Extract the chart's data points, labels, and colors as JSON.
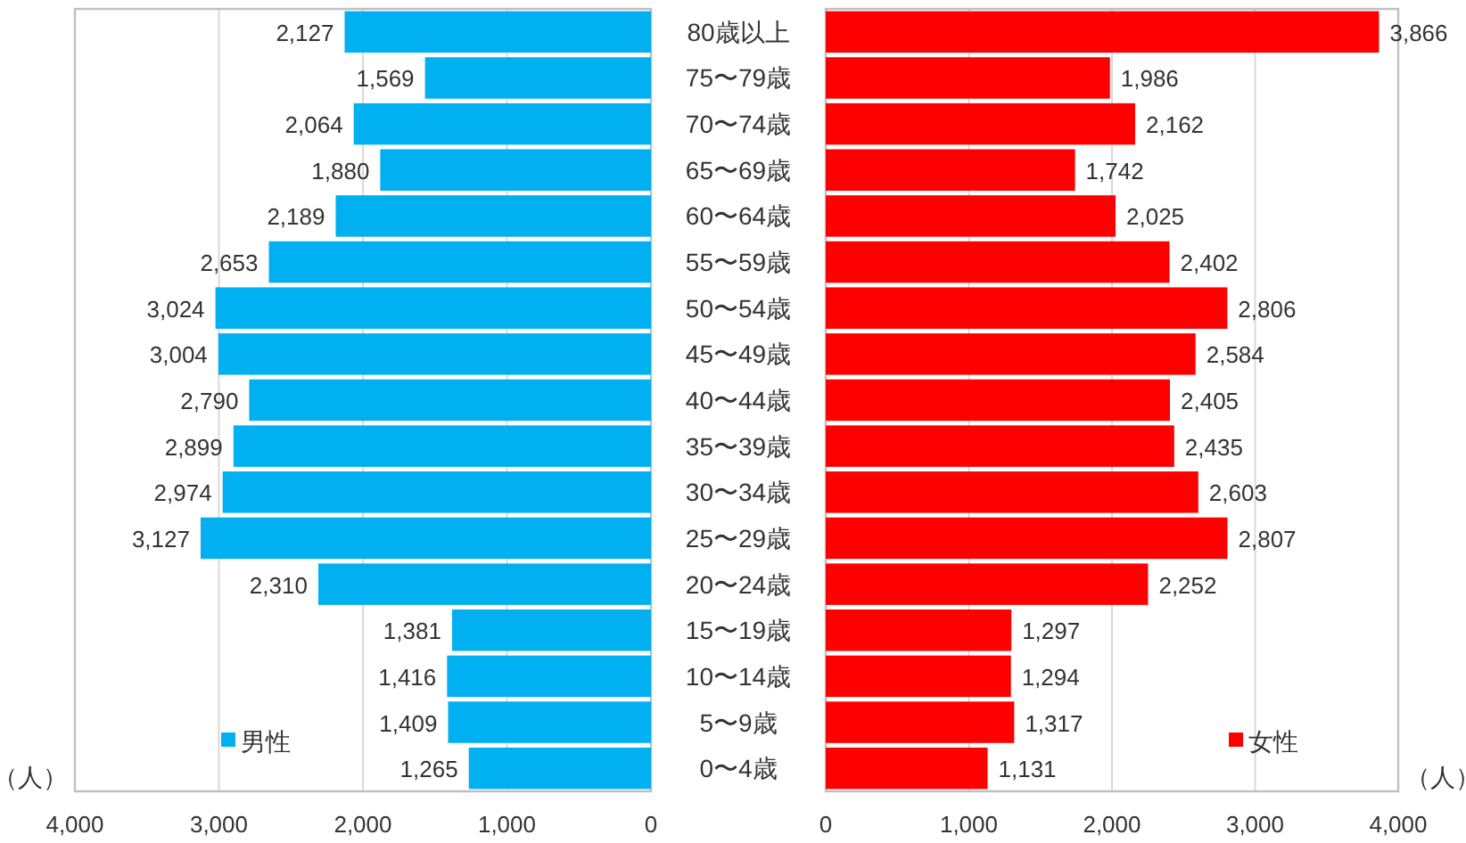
{
  "chart_data": [
    {
      "type": "bar",
      "orientation": "horizontal",
      "categories": [
        null,
        null,
        null,
        null,
        null,
        null,
        null,
        null,
        null,
        null,
        null,
        null,
        null,
        null,
        null,
        null,
        null
      ],
      "series": [
        {
          "name": "男性",
          "color": "#00b0f0",
          "values": [
            2127,
            1569,
            2064,
            1880,
            2189,
            2653,
            3024,
            3004,
            2790,
            2899,
            2974,
            3127,
            2310,
            1381,
            1416,
            1409,
            1265
          ],
          "value_labels": [
            "2,127",
            "1,569",
            "2,064",
            "1,880",
            "2,189",
            "2,653",
            "3,024",
            "3,004",
            "2,790",
            "2,899",
            "2,974",
            "3,127",
            "2,310",
            "1,381",
            "1,416",
            "1,409",
            "1,265"
          ]
        }
      ],
      "xlim": [
        4000,
        0
      ],
      "xticks": [
        {
          "value": 4000,
          "label": "4,000"
        },
        {
          "value": 3000,
          "label": "3,000"
        },
        {
          "value": 2000,
          "label": "2,000"
        },
        {
          "value": 1000,
          "label": "1,000"
        },
        0
      ],
      "xlabel": "（人）",
      "grid": "x",
      "legend": "bottom left",
      "tick_labels": "x"
    },
    {
      "type": "bar",
      "orientation": "horizontal",
      "categories": [
        "80歳以上",
        "75〜79歳",
        "70〜74歳",
        "65〜69歳",
        "60〜64歳",
        "55〜59歳",
        "50〜54歳",
        "45〜49歳",
        "40〜44歳",
        "35〜39歳",
        "30〜34歳",
        "25〜29歳",
        "20〜24歳",
        "15〜19歳",
        "10〜14歳",
        "5〜9歳",
        "0〜4歳"
      ],
      "series": [
        {
          "name": "女性",
          "color": "#ff0000",
          "values": [
            3866,
            1986,
            2162,
            1742,
            2025,
            2402,
            2806,
            2584,
            2405,
            2435,
            2603,
            2807,
            2252,
            1297,
            1294,
            1317,
            1131
          ],
          "value_labels": [
            "3,866",
            "1,986",
            "2,162",
            "1,742",
            "2,025",
            "2,402",
            "2,806",
            "2,584",
            "2,405",
            "2,435",
            "2,603",
            "2,807",
            "2,252",
            "1,297",
            "1,294",
            "1,317",
            "1,131"
          ]
        }
      ],
      "xlim": [
        0,
        4000
      ],
      "xticks": [
        0,
        {
          "value": 1000,
          "label": "1,000"
        },
        {
          "value": 2000,
          "label": "2,000"
        },
        {
          "value": 3000,
          "label": "3,000"
        },
        {
          "value": 4000,
          "label": "4,000"
        }
      ],
      "xlabel": "（人）",
      "grid": "x",
      "legend": "bottom right"
    }
  ]
}
